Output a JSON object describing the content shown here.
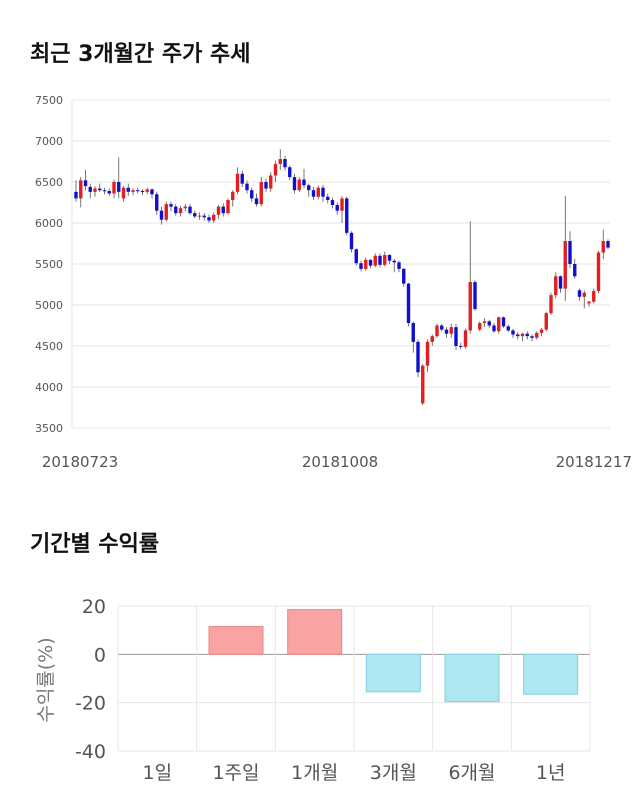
{
  "sections": {
    "price_title": "최근 3개월간 주가 추세",
    "returns_title": "기간별 수익률"
  },
  "chart_data": [
    {
      "type": "candlestick",
      "title": "최근 3개월간 주가 추세",
      "ylim": [
        3500,
        7500
      ],
      "yticks": [
        3500,
        4000,
        4500,
        5000,
        5500,
        6000,
        6500,
        7000,
        7500
      ],
      "xtick_labels": [
        "20180723",
        "20181008",
        "20181217"
      ],
      "grid": true,
      "colors": {
        "up": "#e02020",
        "down": "#1010cc",
        "wick": "#555555"
      },
      "candles": [
        [
          6380,
          6520,
          6260,
          6300
        ],
        [
          6300,
          6560,
          6190,
          6520
        ],
        [
          6520,
          6650,
          6400,
          6450
        ],
        [
          6440,
          6480,
          6300,
          6380
        ],
        [
          6380,
          6450,
          6320,
          6420
        ],
        [
          6420,
          6480,
          6380,
          6400
        ],
        [
          6400,
          6430,
          6350,
          6390
        ],
        [
          6390,
          6420,
          6330,
          6360
        ],
        [
          6360,
          6530,
          6300,
          6500
        ],
        [
          6500,
          6800,
          6300,
          6380
        ],
        [
          6300,
          6450,
          6260,
          6430
        ],
        [
          6430,
          6480,
          6330,
          6380
        ],
        [
          6380,
          6420,
          6340,
          6400
        ],
        [
          6400,
          6430,
          6360,
          6390
        ],
        [
          6390,
          6410,
          6340,
          6380
        ],
        [
          6380,
          6430,
          6350,
          6410
        ],
        [
          6410,
          6420,
          6300,
          6350
        ],
        [
          6350,
          6380,
          6100,
          6150
        ],
        [
          6150,
          6200,
          5980,
          6040
        ],
        [
          6040,
          6260,
          6020,
          6230
        ],
        [
          6230,
          6260,
          6140,
          6200
        ],
        [
          6200,
          6230,
          6090,
          6120
        ],
        [
          6120,
          6210,
          6080,
          6180
        ],
        [
          6180,
          6230,
          6140,
          6200
        ],
        [
          6200,
          6230,
          6100,
          6120
        ],
        [
          6120,
          6150,
          6060,
          6080
        ],
        [
          6080,
          6130,
          6040,
          6090
        ],
        [
          6090,
          6120,
          6030,
          6070
        ],
        [
          6070,
          6100,
          6000,
          6030
        ],
        [
          6030,
          6130,
          6000,
          6100
        ],
        [
          6100,
          6220,
          6050,
          6200
        ],
        [
          6200,
          6240,
          6080,
          6120
        ],
        [
          6120,
          6300,
          6100,
          6280
        ],
        [
          6280,
          6400,
          6200,
          6380
        ],
        [
          6380,
          6680,
          6350,
          6600
        ],
        [
          6600,
          6640,
          6440,
          6480
        ],
        [
          6480,
          6520,
          6360,
          6400
        ],
        [
          6400,
          6430,
          6260,
          6300
        ],
        [
          6300,
          6360,
          6200,
          6230
        ],
        [
          6230,
          6560,
          6200,
          6500
        ],
        [
          6500,
          6540,
          6380,
          6420
        ],
        [
          6420,
          6620,
          6380,
          6580
        ],
        [
          6580,
          6760,
          6500,
          6720
        ],
        [
          6720,
          6900,
          6650,
          6780
        ],
        [
          6780,
          6820,
          6640,
          6680
        ],
        [
          6680,
          6700,
          6520,
          6560
        ],
        [
          6560,
          6600,
          6360,
          6400
        ],
        [
          6400,
          6560,
          6380,
          6530
        ],
        [
          6530,
          6660,
          6420,
          6460
        ],
        [
          6460,
          6480,
          6320,
          6400
        ],
        [
          6400,
          6440,
          6280,
          6320
        ],
        [
          6320,
          6460,
          6290,
          6430
        ],
        [
          6430,
          6460,
          6260,
          6320
        ],
        [
          6320,
          6360,
          6240,
          6280
        ],
        [
          6280,
          6310,
          6180,
          6220
        ],
        [
          6220,
          6250,
          6100,
          6150
        ],
        [
          6150,
          6330,
          6000,
          6300
        ],
        [
          6300,
          6320,
          5850,
          5880
        ],
        [
          5880,
          5900,
          5640,
          5680
        ],
        [
          5680,
          5690,
          5480,
          5510
        ],
        [
          5510,
          5540,
          5410,
          5440
        ],
        [
          5440,
          5580,
          5420,
          5550
        ],
        [
          5550,
          5560,
          5450,
          5480
        ],
        [
          5480,
          5630,
          5460,
          5600
        ],
        [
          5600,
          5630,
          5460,
          5490
        ],
        [
          5490,
          5650,
          5470,
          5610
        ],
        [
          5610,
          5620,
          5500,
          5540
        ],
        [
          5540,
          5560,
          5400,
          5520
        ],
        [
          5520,
          5540,
          5400,
          5440
        ],
        [
          5440,
          5450,
          5220,
          5260
        ],
        [
          5260,
          5270,
          4740,
          4780
        ],
        [
          4780,
          4800,
          4420,
          4550
        ],
        [
          4550,
          4580,
          4120,
          4180
        ],
        [
          3800,
          4280,
          3780,
          4260
        ],
        [
          4260,
          4580,
          4180,
          4550
        ],
        [
          4550,
          4640,
          4500,
          4620
        ],
        [
          4620,
          4770,
          4600,
          4750
        ],
        [
          4750,
          4770,
          4680,
          4700
        ],
        [
          4700,
          4730,
          4600,
          4650
        ],
        [
          4650,
          4770,
          4600,
          4730
        ],
        [
          4730,
          4770,
          4450,
          4500
        ],
        [
          4500,
          4540,
          4460,
          4490
        ],
        [
          4490,
          4710,
          4470,
          4690
        ],
        [
          4690,
          6020,
          4650,
          5280
        ],
        [
          5280,
          5300,
          4930,
          4950
        ],
        [
          4700,
          4800,
          4680,
          4780
        ],
        [
          4780,
          4840,
          4730,
          4800
        ],
        [
          4800,
          4820,
          4720,
          4750
        ],
        [
          4750,
          4780,
          4660,
          4680
        ],
        [
          4680,
          4860,
          4650,
          4850
        ],
        [
          4850,
          4860,
          4720,
          4740
        ],
        [
          4740,
          4760,
          4670,
          4690
        ],
        [
          4690,
          4710,
          4600,
          4640
        ],
        [
          4640,
          4670,
          4580,
          4620
        ],
        [
          4620,
          4660,
          4560,
          4650
        ],
        [
          4650,
          4680,
          4580,
          4620
        ],
        [
          4620,
          4640,
          4560,
          4600
        ],
        [
          4600,
          4680,
          4580,
          4660
        ],
        [
          4660,
          4720,
          4620,
          4700
        ],
        [
          4700,
          4920,
          4680,
          4900
        ],
        [
          4900,
          5150,
          4880,
          5120
        ],
        [
          5120,
          5400,
          5080,
          5350
        ],
        [
          5350,
          5360,
          5150,
          5200
        ],
        [
          5200,
          6330,
          5050,
          5780
        ],
        [
          5780,
          5900,
          5450,
          5500
        ],
        [
          5500,
          5560,
          5320,
          5350
        ],
        [
          5180,
          5200,
          5050,
          5100
        ],
        [
          5100,
          5180,
          4960,
          5150
        ],
        [
          5020,
          5050,
          4980,
          5040
        ],
        [
          5040,
          5200,
          5020,
          5170
        ],
        [
          5170,
          5660,
          5140,
          5640
        ],
        [
          5640,
          5920,
          5560,
          5780
        ],
        [
          5780,
          5800,
          5680,
          5700
        ]
      ]
    },
    {
      "type": "bar",
      "ylabel": "수익률(%)",
      "ylim": [
        -40,
        20
      ],
      "yticks": [
        20,
        0,
        -20,
        -40
      ],
      "categories": [
        "1일",
        "1주일",
        "1개월",
        "3개월",
        "6개월",
        "1년"
      ],
      "values": [
        0,
        11.5,
        18.5,
        -15.5,
        -19.5,
        -16.5
      ],
      "grid": true,
      "colors": {
        "positive": "#f9a3a3",
        "positive_stroke": "#e88888",
        "negative": "#aee7f2",
        "negative_stroke": "#7fcfe0"
      }
    }
  ]
}
